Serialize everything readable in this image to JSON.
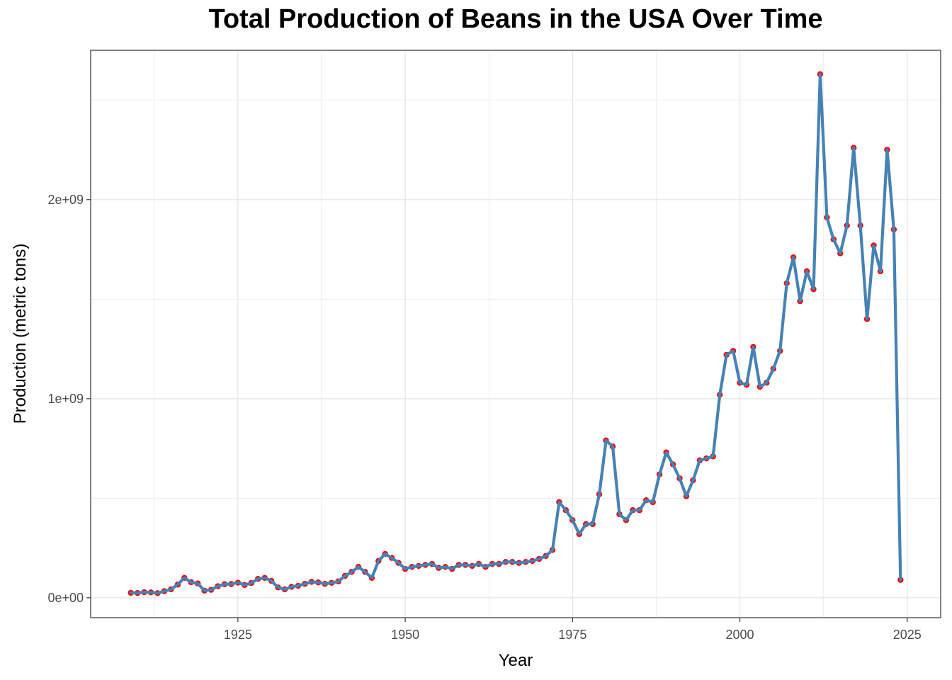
{
  "chart_data": {
    "type": "line",
    "title": "Total Production of Beans in the USA Over Time",
    "xlabel": "Year",
    "ylabel": "Production (metric tons)",
    "xlim": [
      1903,
      2030
    ],
    "ylim": [
      -100000000,
      2750000000
    ],
    "x_ticks": [
      1925,
      1950,
      1975,
      2000,
      2025
    ],
    "x_tick_labels": [
      "1925",
      "1950",
      "1975",
      "2000",
      "2025"
    ],
    "y_ticks": [
      0,
      1000000000,
      2000000000
    ],
    "y_tick_labels": [
      "0e+00",
      "1e+09",
      "2e+09"
    ],
    "grid": true,
    "line_color": "#4682b4",
    "point_color": "#ff0000",
    "series": [
      {
        "x": [
          1909,
          1910,
          1911,
          1912,
          1913,
          1914,
          1915,
          1916,
          1917,
          1918,
          1919,
          1920,
          1921,
          1922,
          1923,
          1924,
          1925,
          1926,
          1927,
          1928,
          1929,
          1930,
          1931,
          1932,
          1933,
          1934,
          1935,
          1936,
          1937,
          1938,
          1939,
          1940,
          1941,
          1942,
          1943,
          1944,
          1945,
          1946,
          1947,
          1948,
          1949,
          1950,
          1951,
          1952,
          1953,
          1954,
          1955,
          1956,
          1957,
          1958,
          1959,
          1960,
          1961,
          1962,
          1963,
          1964,
          1965,
          1966,
          1967,
          1968,
          1969,
          1970,
          1971,
          1972,
          1973,
          1974,
          1975,
          1976,
          1977,
          1978,
          1979,
          1980,
          1981,
          1982,
          1983,
          1984,
          1985,
          1986,
          1987,
          1988,
          1989,
          1990,
          1991,
          1992,
          1993,
          1994,
          1995,
          1996,
          1997,
          1998,
          1999,
          2000,
          2001,
          2002,
          2003,
          2004,
          2005,
          2006,
          2007,
          2008,
          2009,
          2010,
          2011,
          2012,
          2013,
          2014,
          2015,
          2016,
          2017,
          2018,
          2019,
          2020,
          2021,
          2022,
          2023,
          2024
        ],
        "values": [
          25000000,
          24000000,
          28000000,
          27000000,
          23000000,
          33000000,
          42000000,
          66000000,
          100000000,
          78000000,
          72000000,
          36000000,
          40000000,
          58000000,
          68000000,
          69000000,
          76000000,
          64000000,
          74000000,
          95000000,
          100000000,
          85000000,
          52000000,
          42000000,
          55000000,
          60000000,
          70000000,
          80000000,
          77000000,
          70000000,
          75000000,
          82000000,
          110000000,
          130000000,
          155000000,
          130000000,
          100000000,
          185000000,
          220000000,
          200000000,
          175000000,
          145000000,
          155000000,
          160000000,
          165000000,
          170000000,
          150000000,
          155000000,
          145000000,
          165000000,
          165000000,
          160000000,
          170000000,
          155000000,
          170000000,
          170000000,
          180000000,
          180000000,
          175000000,
          180000000,
          185000000,
          195000000,
          210000000,
          240000000,
          480000000,
          440000000,
          390000000,
          320000000,
          370000000,
          370000000,
          520000000,
          790000000,
          760000000,
          420000000,
          390000000,
          440000000,
          440000000,
          490000000,
          480000000,
          620000000,
          730000000,
          670000000,
          600000000,
          510000000,
          590000000,
          690000000,
          700000000,
          710000000,
          1020000000,
          1220000000,
          1240000000,
          1080000000,
          1070000000,
          1260000000,
          1060000000,
          1080000000,
          1150000000,
          1240000000,
          1580000000,
          1710000000,
          1490000000,
          1640000000,
          1550000000,
          2630000000,
          1910000000,
          1800000000,
          1730000000,
          1870000000,
          2260000000,
          1870000000,
          1400000000,
          1770000000,
          1640000000,
          2250000000,
          1850000000,
          90000000
        ]
      }
    ]
  }
}
